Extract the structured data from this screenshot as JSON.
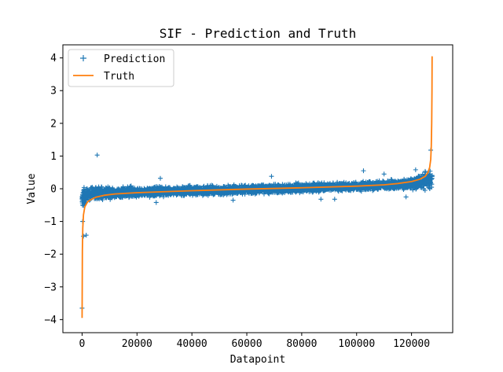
{
  "chart_data": {
    "type": "scatter",
    "title": "SIF - Prediction and Truth",
    "xlabel": "Datapoint",
    "ylabel": "Value",
    "xlim": [
      -7000,
      135000
    ],
    "ylim": [
      -4.4,
      4.4
    ],
    "x_ticks": [
      0,
      20000,
      40000,
      60000,
      80000,
      100000,
      120000
    ],
    "x_tick_labels": [
      "0",
      "20000",
      "40000",
      "60000",
      "80000",
      "100000",
      "120000"
    ],
    "y_ticks": [
      -4,
      -3,
      -2,
      -1,
      0,
      1,
      2,
      3,
      4
    ],
    "y_tick_labels": [
      "−4",
      "−3",
      "−2",
      "−1",
      "0",
      "1",
      "2",
      "3",
      "4"
    ],
    "grid": false,
    "legend_position": "top-left",
    "series": [
      {
        "name": "Prediction",
        "kind": "scatter",
        "marker": "+",
        "color": "#1f77b4",
        "band": {
          "x": [
            0,
            3000,
            20000,
            40000,
            60000,
            80000,
            100000,
            120000,
            127500
          ],
          "y_low": [
            -0.65,
            -0.4,
            -0.3,
            -0.25,
            -0.2,
            -0.15,
            -0.1,
            -0.05,
            -0.1
          ],
          "y_high": [
            0.1,
            0.1,
            0.1,
            0.12,
            0.15,
            0.2,
            0.25,
            0.35,
            0.75
          ]
        },
        "outliers": [
          {
            "x": 0,
            "y": -3.65
          },
          {
            "x": 500,
            "y": -1.45
          },
          {
            "x": 1500,
            "y": -1.42
          },
          {
            "x": 200,
            "y": -1.0
          },
          {
            "x": 5500,
            "y": 1.03
          },
          {
            "x": 28500,
            "y": 0.32
          },
          {
            "x": 27000,
            "y": -0.42
          },
          {
            "x": 55000,
            "y": -0.35
          },
          {
            "x": 69000,
            "y": 0.38
          },
          {
            "x": 87000,
            "y": -0.32
          },
          {
            "x": 92000,
            "y": -0.32
          },
          {
            "x": 102500,
            "y": 0.55
          },
          {
            "x": 110000,
            "y": 0.45
          },
          {
            "x": 118000,
            "y": -0.25
          },
          {
            "x": 121500,
            "y": 0.58
          },
          {
            "x": 127000,
            "y": 1.18
          }
        ]
      },
      {
        "name": "Truth",
        "kind": "line",
        "color": "#ff7f0e",
        "x": [
          0,
          100,
          250,
          500,
          1000,
          2000,
          3000,
          5000,
          8000,
          12000,
          20000,
          40000,
          60000,
          80000,
          100000,
          110000,
          115000,
          120000,
          123000,
          125000,
          126000,
          126600,
          127000,
          127200,
          127350,
          127450,
          127500
        ],
        "y": [
          -3.95,
          -1.9,
          -1.2,
          -0.8,
          -0.55,
          -0.4,
          -0.34,
          -0.26,
          -0.2,
          -0.16,
          -0.12,
          -0.06,
          -0.01,
          0.03,
          0.08,
          0.12,
          0.16,
          0.22,
          0.29,
          0.38,
          0.5,
          0.65,
          0.9,
          1.3,
          2.0,
          3.0,
          4.05
        ]
      }
    ]
  }
}
